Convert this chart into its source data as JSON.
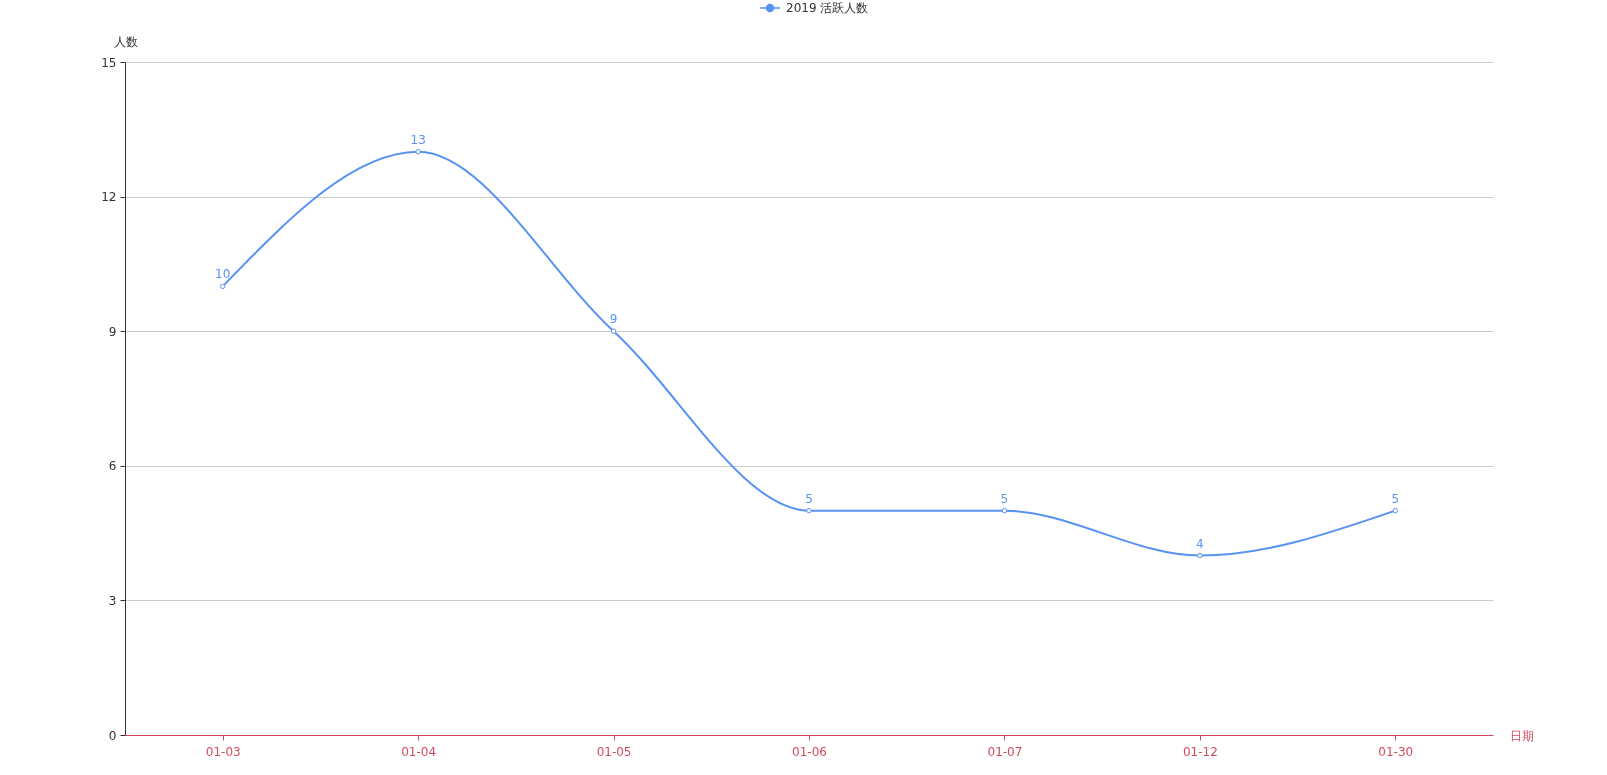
{
  "chart_data": {
    "type": "line",
    "categories": [
      "01-03",
      "01-04",
      "01-05",
      "01-06",
      "01-07",
      "01-12",
      "01-30"
    ],
    "series": [
      {
        "name": "2019 活跃人数",
        "color": "#5793f3",
        "values": [
          10,
          13,
          9,
          5,
          5,
          4,
          5
        ]
      }
    ],
    "xlabel": "日期",
    "ylabel": "人数",
    "ylim": [
      0,
      15
    ],
    "yticks": [
      0,
      3,
      6,
      9,
      12,
      15
    ],
    "grid": "y",
    "legend": "top",
    "data_labels": true,
    "marker": "circle",
    "line_style": "solid"
  }
}
